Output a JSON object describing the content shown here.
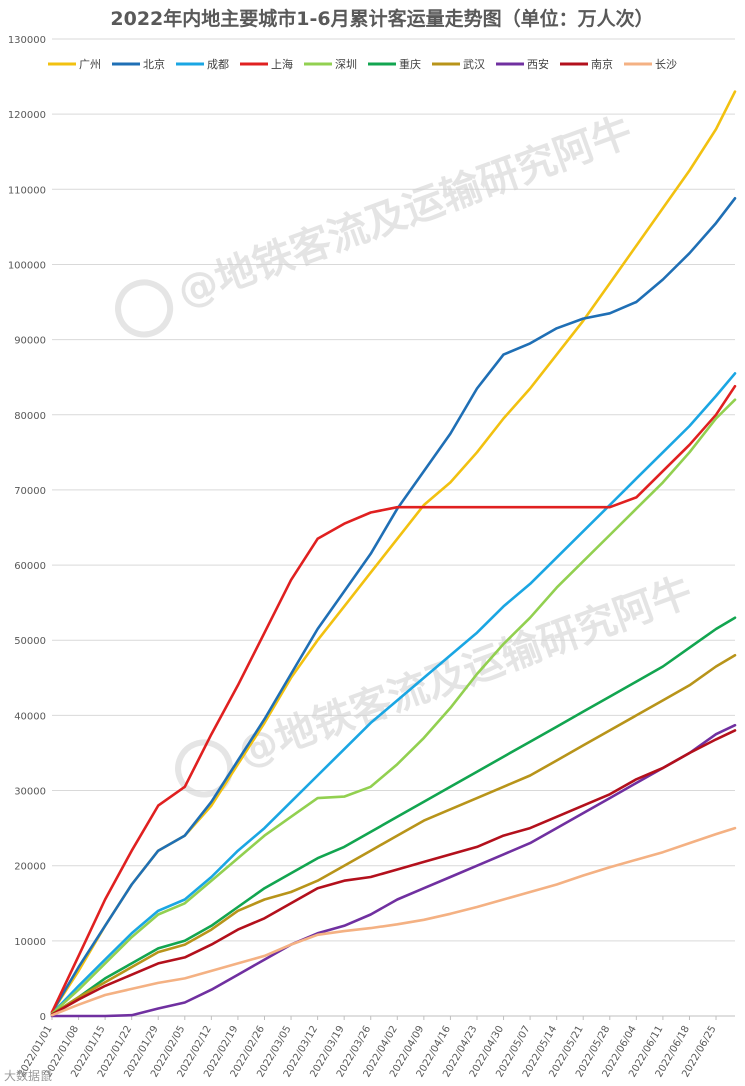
{
  "chart_data": {
    "type": "line",
    "title": "2022年内地主要城市1-6月累计客运量走势图（单位：万人次）",
    "xlabel": "",
    "ylabel": "",
    "ylim": [
      0,
      130000
    ],
    "yticks": [
      0,
      10000,
      20000,
      30000,
      40000,
      50000,
      60000,
      70000,
      80000,
      90000,
      100000,
      110000,
      120000,
      130000
    ],
    "x_range": [
      "2022/01/01",
      "2022/06/30"
    ],
    "x_ticks": [
      "2022/01/01",
      "2022/01/08",
      "2022/01/15",
      "2022/01/22",
      "2022/01/29",
      "2022/02/05",
      "2022/02/12",
      "2022/02/19",
      "2022/02/26",
      "2022/03/05",
      "2022/03/12",
      "2022/03/19",
      "2022/03/26",
      "2022/04/02",
      "2022/04/09",
      "2022/04/16",
      "2022/04/23",
      "2022/04/30",
      "2022/05/07",
      "2022/05/14",
      "2022/05/21",
      "2022/05/28",
      "2022/06/04",
      "2022/06/11",
      "2022/06/18",
      "2022/06/25"
    ],
    "grid": true,
    "legend_position": "top",
    "series": [
      {
        "name": "广州",
        "color": "#f2c110",
        "x": [
          "2022/01/01",
          "2022/01/08",
          "2022/01/15",
          "2022/01/22",
          "2022/01/29",
          "2022/02/05",
          "2022/02/12",
          "2022/02/19",
          "2022/02/26",
          "2022/03/05",
          "2022/03/12",
          "2022/03/19",
          "2022/03/26",
          "2022/04/02",
          "2022/04/09",
          "2022/04/16",
          "2022/04/23",
          "2022/04/30",
          "2022/05/07",
          "2022/05/14",
          "2022/05/21",
          "2022/05/28",
          "2022/06/04",
          "2022/06/11",
          "2022/06/18",
          "2022/06/25",
          "2022/06/30"
        ],
        "values": [
          500,
          6000,
          12000,
          17500,
          22000,
          24000,
          28000,
          33500,
          39000,
          45000,
          50000,
          54500,
          59000,
          63500,
          68000,
          71000,
          75000,
          79500,
          83500,
          88000,
          92500,
          97500,
          102500,
          107500,
          112500,
          118000,
          123000
        ]
      },
      {
        "name": "北京",
        "color": "#1f6fb5",
        "x": [
          "2022/01/01",
          "2022/01/08",
          "2022/01/15",
          "2022/01/22",
          "2022/01/29",
          "2022/02/05",
          "2022/02/12",
          "2022/02/19",
          "2022/02/26",
          "2022/03/05",
          "2022/03/12",
          "2022/03/19",
          "2022/03/26",
          "2022/04/02",
          "2022/04/09",
          "2022/04/16",
          "2022/04/23",
          "2022/04/30",
          "2022/05/07",
          "2022/05/14",
          "2022/05/21",
          "2022/05/28",
          "2022/06/04",
          "2022/06/11",
          "2022/06/18",
          "2022/06/25",
          "2022/06/30"
        ],
        "values": [
          500,
          6500,
          12000,
          17500,
          22000,
          24000,
          28500,
          34000,
          39500,
          45500,
          51500,
          56500,
          61500,
          67500,
          72500,
          77500,
          83500,
          88000,
          89500,
          91500,
          92800,
          93500,
          95000,
          98000,
          101500,
          105500,
          108800
        ]
      },
      {
        "name": "成都",
        "color": "#1aa6e3",
        "x": [
          "2022/01/01",
          "2022/01/08",
          "2022/01/15",
          "2022/01/22",
          "2022/01/29",
          "2022/02/05",
          "2022/02/12",
          "2022/02/19",
          "2022/02/26",
          "2022/03/05",
          "2022/03/12",
          "2022/03/19",
          "2022/03/26",
          "2022/04/02",
          "2022/04/09",
          "2022/04/16",
          "2022/04/23",
          "2022/04/30",
          "2022/05/07",
          "2022/05/14",
          "2022/05/21",
          "2022/05/28",
          "2022/06/04",
          "2022/06/11",
          "2022/06/18",
          "2022/06/25",
          "2022/06/30"
        ],
        "values": [
          300,
          4000,
          7500,
          11000,
          14000,
          15500,
          18500,
          22000,
          25000,
          28500,
          32000,
          35500,
          39000,
          42000,
          45000,
          48000,
          51000,
          54500,
          57500,
          61000,
          64500,
          68000,
          71500,
          75000,
          78500,
          82500,
          85500
        ]
      },
      {
        "name": "上海",
        "color": "#e02020",
        "x": [
          "2022/01/01",
          "2022/01/08",
          "2022/01/15",
          "2022/01/22",
          "2022/01/29",
          "2022/02/05",
          "2022/02/12",
          "2022/02/19",
          "2022/02/26",
          "2022/03/05",
          "2022/03/12",
          "2022/03/19",
          "2022/03/26",
          "2022/04/02",
          "2022/04/09",
          "2022/04/16",
          "2022/04/23",
          "2022/04/30",
          "2022/05/07",
          "2022/05/14",
          "2022/05/21",
          "2022/05/28",
          "2022/06/04",
          "2022/06/11",
          "2022/06/18",
          "2022/06/25",
          "2022/06/30"
        ],
        "values": [
          500,
          8000,
          15500,
          22000,
          28000,
          30500,
          37500,
          44000,
          51000,
          58000,
          63500,
          65500,
          67000,
          67700,
          67700,
          67700,
          67700,
          67700,
          67700,
          67700,
          67700,
          67700,
          69000,
          72500,
          76000,
          80000,
          83800
        ]
      },
      {
        "name": "深圳",
        "color": "#92d050",
        "x": [
          "2022/01/01",
          "2022/01/08",
          "2022/01/15",
          "2022/01/22",
          "2022/01/29",
          "2022/02/05",
          "2022/02/12",
          "2022/02/19",
          "2022/02/26",
          "2022/03/05",
          "2022/03/12",
          "2022/03/19",
          "2022/03/26",
          "2022/04/02",
          "2022/04/09",
          "2022/04/16",
          "2022/04/23",
          "2022/04/30",
          "2022/05/07",
          "2022/05/14",
          "2022/05/21",
          "2022/05/28",
          "2022/06/04",
          "2022/06/11",
          "2022/06/18",
          "2022/06/25",
          "2022/06/30"
        ],
        "values": [
          300,
          3500,
          7000,
          10500,
          13500,
          15000,
          18000,
          21000,
          24000,
          26500,
          29000,
          29200,
          30500,
          33500,
          37000,
          41000,
          45500,
          49500,
          53000,
          57000,
          60500,
          64000,
          67500,
          71000,
          75000,
          79500,
          82000
        ]
      },
      {
        "name": "重庆",
        "color": "#12a550",
        "x": [
          "2022/01/01",
          "2022/01/08",
          "2022/01/15",
          "2022/01/22",
          "2022/01/29",
          "2022/02/05",
          "2022/02/12",
          "2022/02/19",
          "2022/02/26",
          "2022/03/05",
          "2022/03/12",
          "2022/03/19",
          "2022/03/26",
          "2022/04/02",
          "2022/04/09",
          "2022/04/16",
          "2022/04/23",
          "2022/04/30",
          "2022/05/07",
          "2022/05/14",
          "2022/05/21",
          "2022/05/28",
          "2022/06/04",
          "2022/06/11",
          "2022/06/18",
          "2022/06/25",
          "2022/06/30"
        ],
        "values": [
          200,
          2500,
          5000,
          7000,
          9000,
          10000,
          12000,
          14500,
          17000,
          19000,
          21000,
          22500,
          24500,
          26500,
          28500,
          30500,
          32500,
          34500,
          36500,
          38500,
          40500,
          42500,
          44500,
          46500,
          49000,
          51500,
          53000
        ]
      },
      {
        "name": "武汉",
        "color": "#b8941a",
        "x": [
          "2022/01/01",
          "2022/01/08",
          "2022/01/15",
          "2022/01/22",
          "2022/01/29",
          "2022/02/05",
          "2022/02/12",
          "2022/02/19",
          "2022/02/26",
          "2022/03/05",
          "2022/03/12",
          "2022/03/19",
          "2022/03/26",
          "2022/04/02",
          "2022/04/09",
          "2022/04/16",
          "2022/04/23",
          "2022/04/30",
          "2022/05/07",
          "2022/05/14",
          "2022/05/21",
          "2022/05/28",
          "2022/06/04",
          "2022/06/11",
          "2022/06/18",
          "2022/06/25",
          "2022/06/30"
        ],
        "values": [
          200,
          2500,
          4500,
          6500,
          8500,
          9500,
          11500,
          14000,
          15500,
          16500,
          18000,
          20000,
          22000,
          24000,
          26000,
          27500,
          29000,
          30500,
          32000,
          34000,
          36000,
          38000,
          40000,
          42000,
          44000,
          46500,
          48000
        ]
      },
      {
        "name": "西安",
        "color": "#7030a0",
        "x": [
          "2022/01/01",
          "2022/01/08",
          "2022/01/15",
          "2022/01/22",
          "2022/01/29",
          "2022/02/05",
          "2022/02/12",
          "2022/02/19",
          "2022/02/26",
          "2022/03/05",
          "2022/03/12",
          "2022/03/19",
          "2022/03/26",
          "2022/04/02",
          "2022/04/09",
          "2022/04/16",
          "2022/04/23",
          "2022/04/30",
          "2022/05/07",
          "2022/05/14",
          "2022/05/21",
          "2022/05/28",
          "2022/06/04",
          "2022/06/11",
          "2022/06/18",
          "2022/06/25",
          "2022/06/30"
        ],
        "values": [
          0,
          0,
          0,
          100,
          1000,
          1800,
          3500,
          5500,
          7500,
          9500,
          11000,
          12000,
          13500,
          15500,
          17000,
          18500,
          20000,
          21500,
          23000,
          25000,
          27000,
          29000,
          31000,
          33000,
          35000,
          37500,
          38700
        ]
      },
      {
        "name": "南京",
        "color": "#b3101c",
        "x": [
          "2022/01/01",
          "2022/01/08",
          "2022/01/15",
          "2022/01/22",
          "2022/01/29",
          "2022/02/05",
          "2022/02/12",
          "2022/02/19",
          "2022/02/26",
          "2022/03/05",
          "2022/03/12",
          "2022/03/19",
          "2022/03/26",
          "2022/04/02",
          "2022/04/09",
          "2022/04/16",
          "2022/04/23",
          "2022/04/30",
          "2022/05/07",
          "2022/05/14",
          "2022/05/21",
          "2022/05/28",
          "2022/06/04",
          "2022/06/11",
          "2022/06/18",
          "2022/06/25",
          "2022/06/30"
        ],
        "values": [
          200,
          2200,
          4000,
          5500,
          7000,
          7800,
          9500,
          11500,
          13000,
          15000,
          17000,
          18000,
          18500,
          19500,
          20500,
          21500,
          22500,
          24000,
          25000,
          26500,
          28000,
          29500,
          31500,
          33000,
          35000,
          36800,
          38000
        ]
      },
      {
        "name": "长沙",
        "color": "#f4b183",
        "x": [
          "2022/01/01",
          "2022/01/08",
          "2022/01/15",
          "2022/01/22",
          "2022/01/29",
          "2022/02/05",
          "2022/02/12",
          "2022/02/19",
          "2022/02/26",
          "2022/03/05",
          "2022/03/12",
          "2022/03/19",
          "2022/03/26",
          "2022/04/02",
          "2022/04/09",
          "2022/04/16",
          "2022/04/23",
          "2022/04/30",
          "2022/05/07",
          "2022/05/14",
          "2022/05/21",
          "2022/05/28",
          "2022/06/04",
          "2022/06/11",
          "2022/06/18",
          "2022/06/25",
          "2022/06/30"
        ],
        "values": [
          100,
          1500,
          2800,
          3600,
          4400,
          5000,
          6000,
          7000,
          8000,
          9500,
          10800,
          11300,
          11700,
          12200,
          12800,
          13600,
          14500,
          15500,
          16500,
          17500,
          18700,
          19800,
          20800,
          21800,
          23000,
          24200,
          25000
        ]
      }
    ]
  },
  "watermark": {
    "text": "@地铁客流及运输研究阿牛",
    "color": "#cfcfcf"
  },
  "corner_mark": {
    "text": "大数据鼠"
  }
}
